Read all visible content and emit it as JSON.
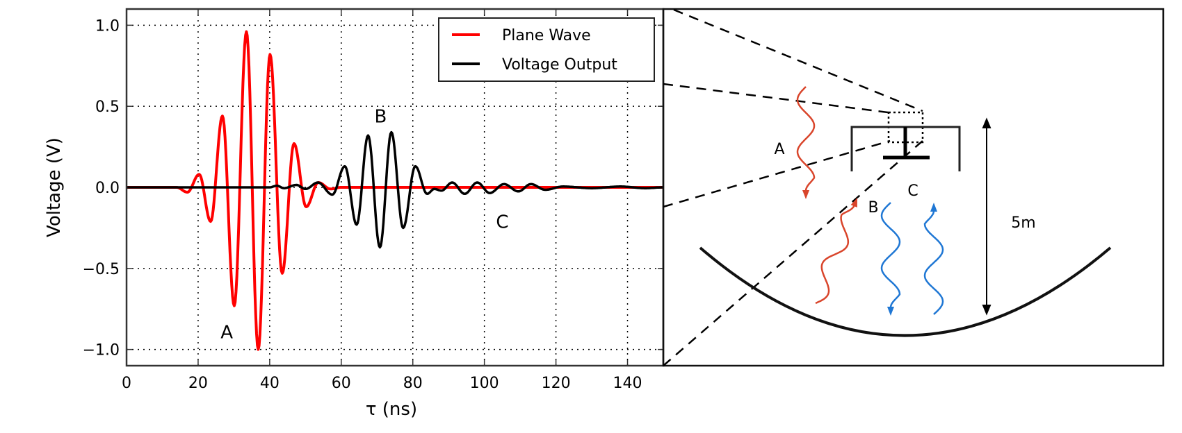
{
  "chart_data": {
    "type": "line",
    "title": "",
    "xlabel": "τ (ns)",
    "ylabel": "Voltage (V)",
    "xlim": [
      0,
      150
    ],
    "ylim": [
      -1.1,
      1.1
    ],
    "xticks": [
      0,
      20,
      40,
      60,
      80,
      100,
      120,
      140
    ],
    "xtick_labels": [
      "0",
      "20",
      "40",
      "60",
      "80",
      "100",
      "120",
      "140"
    ],
    "yticks": [
      1.0,
      0.5,
      0.0,
      -0.5,
      -1.0
    ],
    "ytick_labels": [
      "1.0",
      "0.5",
      "0.0",
      "−0.5",
      "−1.0"
    ],
    "grid": true,
    "legend_position": "top-right",
    "series": [
      {
        "name": "Plane Wave",
        "color": "#ff0000",
        "points": [
          [
            0,
            0
          ],
          [
            14,
            0
          ],
          [
            17,
            -0.03
          ],
          [
            20.3,
            0.08
          ],
          [
            23.5,
            -0.21
          ],
          [
            26.8,
            0.44
          ],
          [
            30.1,
            -0.73
          ],
          [
            33.5,
            0.96
          ],
          [
            36.8,
            -1.0
          ],
          [
            40.1,
            0.82
          ],
          [
            43.5,
            -0.53
          ],
          [
            46.8,
            0.27
          ],
          [
            50.2,
            -0.12
          ],
          [
            53.6,
            0.03
          ],
          [
            57,
            -0.01
          ],
          [
            60,
            0
          ],
          [
            150,
            0
          ]
        ]
      },
      {
        "name": "Voltage Output",
        "color": "#000000",
        "points": [
          [
            0,
            0
          ],
          [
            40,
            0
          ],
          [
            42,
            0.01
          ],
          [
            44,
            -0.005
          ],
          [
            47.5,
            0.015
          ],
          [
            50,
            -0.01
          ],
          [
            53.5,
            0.03
          ],
          [
            57.5,
            -0.045
          ],
          [
            61,
            0.13
          ],
          [
            64.3,
            -0.23
          ],
          [
            67.5,
            0.32
          ],
          [
            70.8,
            -0.37
          ],
          [
            74,
            0.34
          ],
          [
            77.3,
            -0.25
          ],
          [
            80.7,
            0.13
          ],
          [
            84,
            -0.04
          ],
          [
            86,
            -0.01
          ],
          [
            88,
            -0.02
          ],
          [
            91,
            0.03
          ],
          [
            94.5,
            -0.04
          ],
          [
            98,
            0.03
          ],
          [
            101.5,
            -0.035
          ],
          [
            105.5,
            0.02
          ],
          [
            109.5,
            -0.025
          ],
          [
            113,
            0.02
          ],
          [
            117,
            -0.015
          ],
          [
            122,
            0.005
          ],
          [
            130,
            -0.005
          ],
          [
            138,
            0.005
          ],
          [
            145,
            -0.005
          ],
          [
            150,
            0
          ]
        ]
      }
    ],
    "annotations": [
      {
        "text": "A",
        "x": 28,
        "y": -0.93
      },
      {
        "text": "B",
        "x": 71,
        "y": 0.4
      },
      {
        "text": "C",
        "x": 105,
        "y": -0.25
      }
    ]
  },
  "diagram": {
    "labels": {
      "a": "A",
      "b": "B",
      "c": "C",
      "height": "5m"
    },
    "colors": {
      "reflected": "#d9452b",
      "direct": "#1f77d4",
      "structure": "#222222"
    }
  }
}
